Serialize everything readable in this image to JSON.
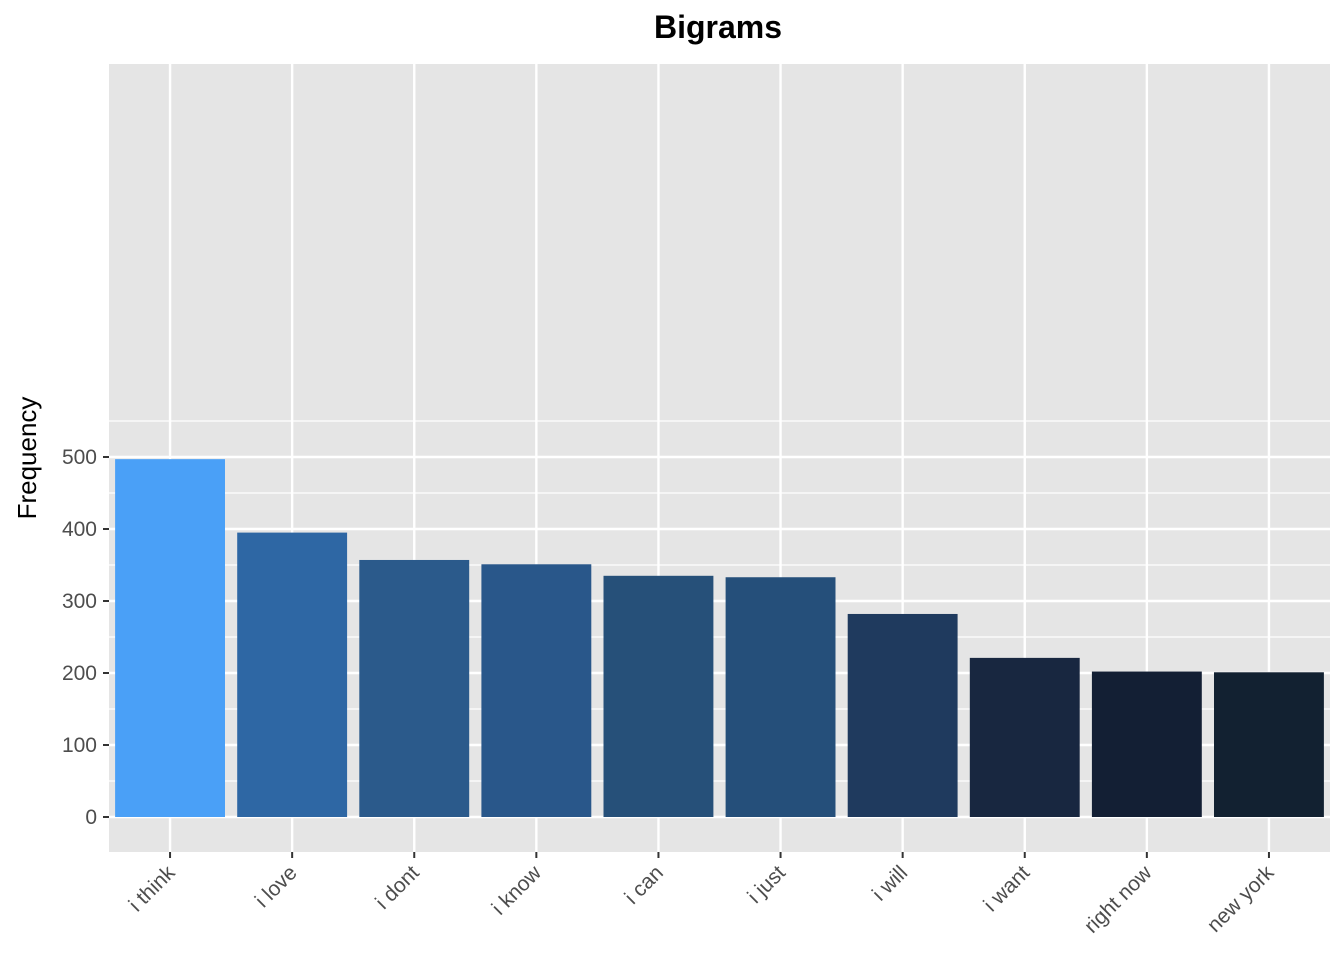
{
  "chart_data": {
    "type": "bar",
    "title": "Bigrams",
    "xlabel": "",
    "ylabel": "Frequency",
    "categories": [
      "i think",
      "i love",
      "i dont",
      "i know",
      "i can",
      "i just",
      "i will",
      "i want",
      "right now",
      "new york"
    ],
    "values": [
      497,
      395,
      357,
      351,
      335,
      333,
      282,
      221,
      202,
      201
    ],
    "colors": [
      "#4aa0f7",
      "#2e67a4",
      "#2b5a8b",
      "#29578a",
      "#265079",
      "#254f7a",
      "#1f3a5e",
      "#182740",
      "#131f34",
      "#122131"
    ],
    "ylim": [
      0,
      520
    ],
    "yticks": [
      0,
      100,
      200,
      300,
      400,
      500
    ],
    "grid": true,
    "panel_background": "#e5e5e5",
    "grid_color": "#ffffff",
    "legend": "none"
  }
}
